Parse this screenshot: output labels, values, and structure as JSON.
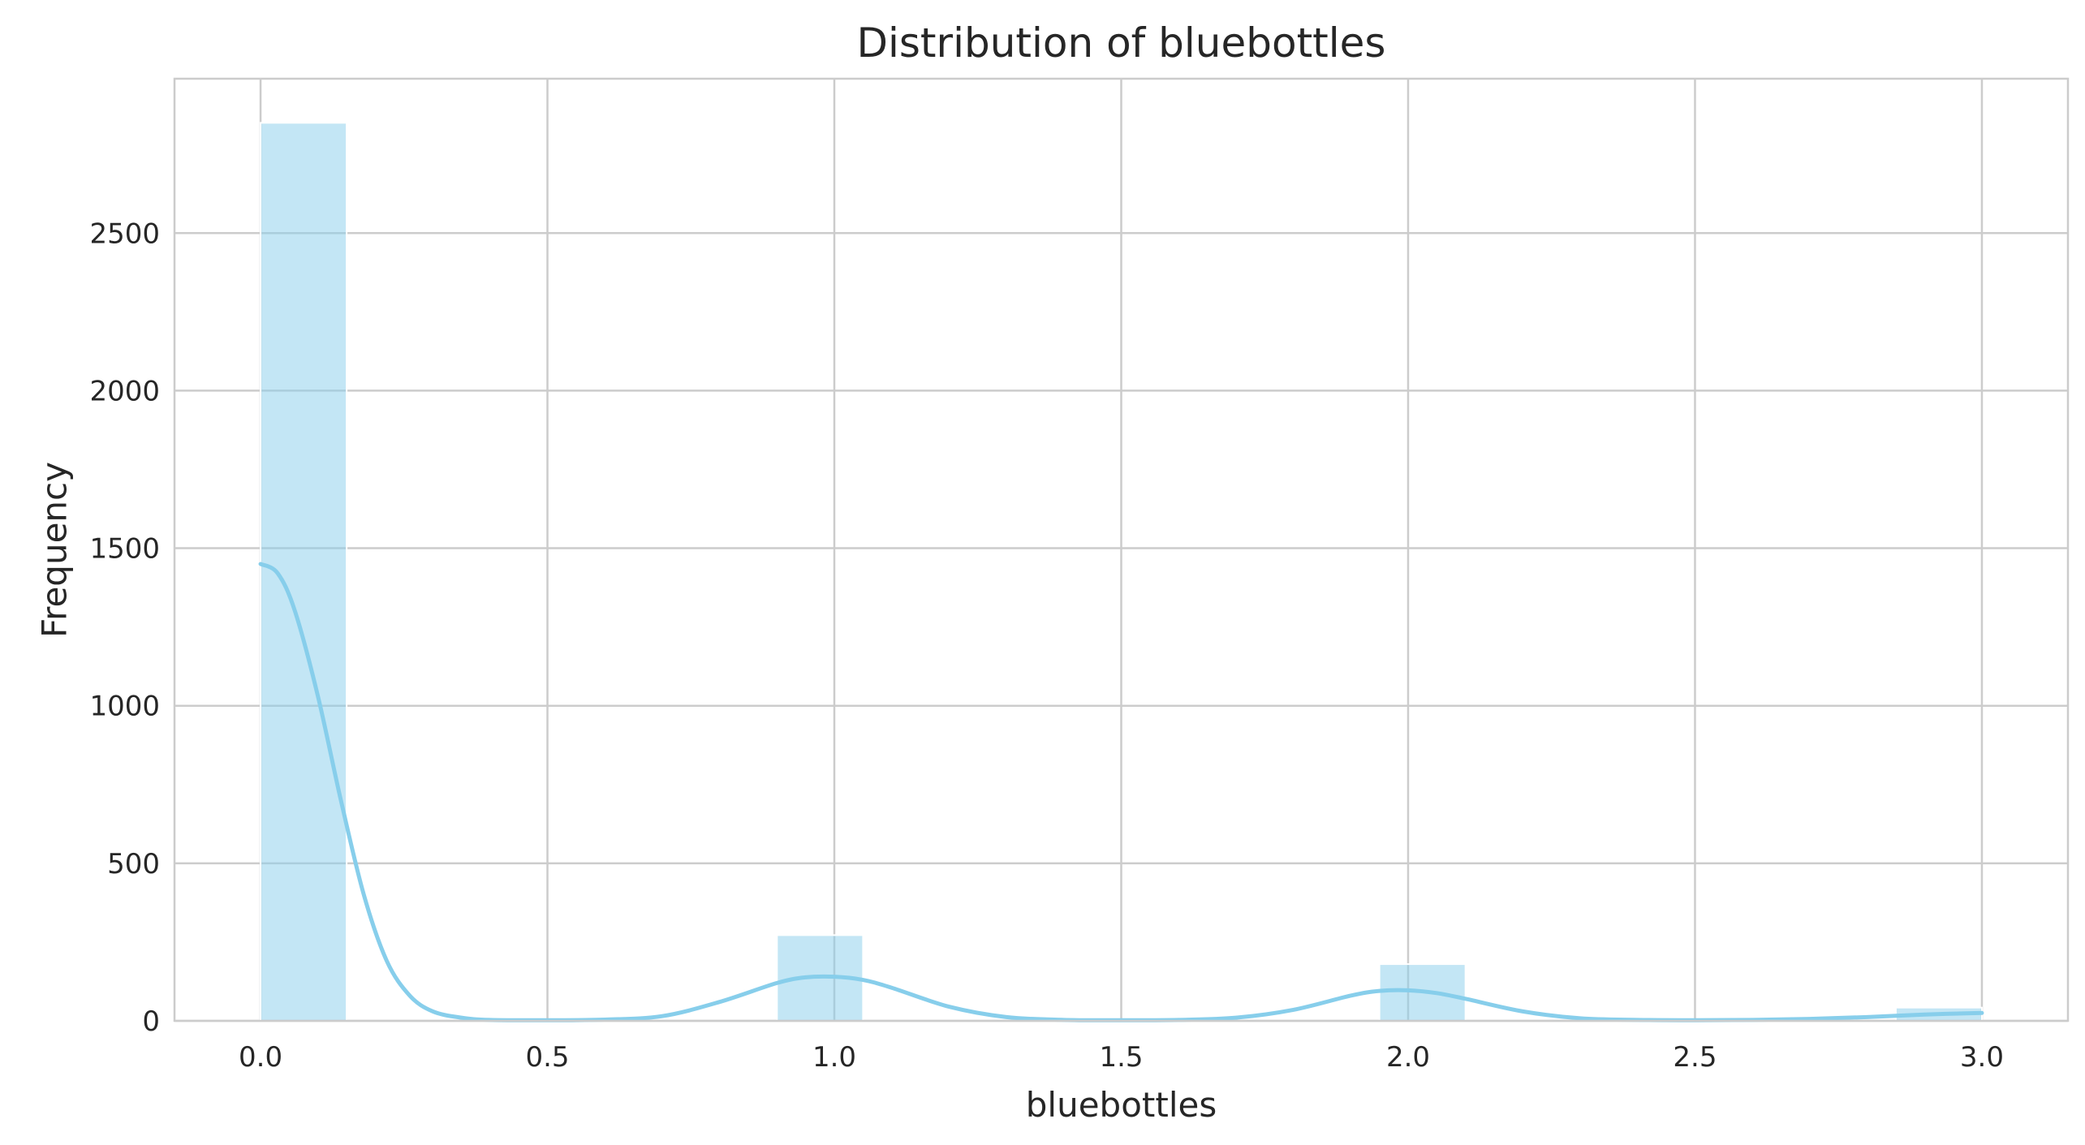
{
  "chart_data": {
    "type": "bar",
    "title": "Distribution of bluebottles",
    "xlabel": "bluebottles",
    "ylabel": "Frequency",
    "xlim": [
      -0.15,
      3.15
    ],
    "ylim": [
      0,
      2990
    ],
    "xticks": [
      "0.0",
      "0.5",
      "1.0",
      "1.5",
      "2.0",
      "2.5",
      "3.0"
    ],
    "xtick_values": [
      0,
      0.5,
      1,
      1.5,
      2,
      2.5,
      3
    ],
    "yticks": [
      "0",
      "500",
      "1000",
      "1500",
      "2000",
      "2500"
    ],
    "ytick_values": [
      0,
      500,
      1000,
      1500,
      2000,
      2500
    ],
    "grid": true,
    "bars": [
      {
        "x0": 0.0,
        "x1": 0.15,
        "value": 2850
      },
      {
        "x0": 0.9,
        "x1": 1.05,
        "value": 272
      },
      {
        "x0": 1.95,
        "x1": 2.1,
        "value": 180
      },
      {
        "x0": 2.85,
        "x1": 3.0,
        "value": 42
      }
    ],
    "kde": {
      "x": [
        0.0,
        0.03,
        0.06,
        0.1,
        0.14,
        0.18,
        0.22,
        0.26,
        0.3,
        0.35,
        0.4,
        0.5,
        0.6,
        0.7,
        0.8,
        0.9,
        0.95,
        1.0,
        1.05,
        1.1,
        1.2,
        1.3,
        1.4,
        1.5,
        1.6,
        1.7,
        1.8,
        1.9,
        1.95,
        2.0,
        2.05,
        2.1,
        2.2,
        2.3,
        2.4,
        2.5,
        2.6,
        2.7,
        2.8,
        2.9,
        3.0
      ],
      "y": [
        1450,
        1420,
        1300,
        1030,
        700,
        400,
        190,
        80,
        30,
        10,
        3,
        2,
        4,
        15,
        60,
        120,
        138,
        140,
        130,
        105,
        45,
        12,
        3,
        2,
        3,
        10,
        35,
        80,
        95,
        97,
        88,
        70,
        30,
        8,
        3,
        2,
        3,
        6,
        12,
        20,
        25
      ]
    },
    "bar_color": "#87ceeb",
    "bar_opacity": 0.5,
    "kde_color": "#87ceeb",
    "grid_color": "#cccccc"
  }
}
